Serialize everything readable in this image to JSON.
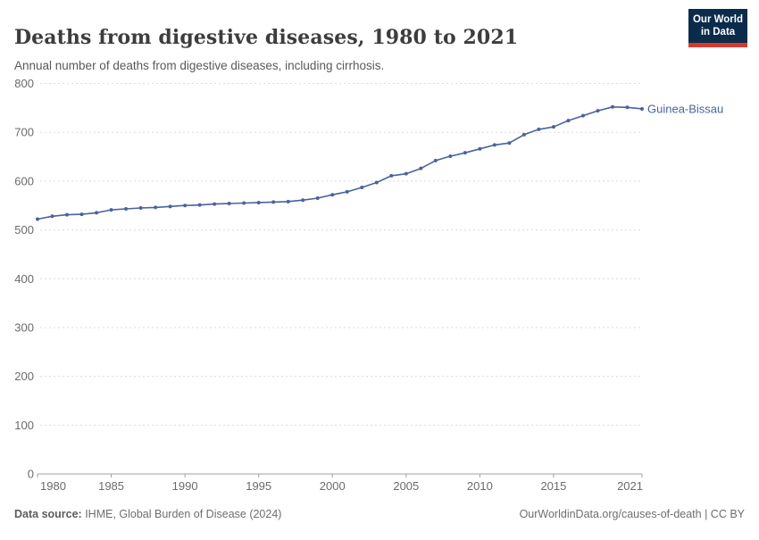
{
  "header": {
    "title": "Deaths from digestive diseases, 1980 to 2021",
    "subtitle": "Annual number of deaths from digestive diseases, including cirrhosis."
  },
  "logo": {
    "line1": "Our World",
    "line2": "in Data",
    "bg_color": "#0b2b4b",
    "accent_color": "#d7382e"
  },
  "chart_data": {
    "type": "line",
    "title": "Deaths from digestive diseases, 1980 to 2021",
    "series": [
      {
        "name": "Guinea-Bissau",
        "color": "#49639c",
        "x": [
          1980,
          1981,
          1982,
          1983,
          1984,
          1985,
          1986,
          1987,
          1988,
          1989,
          1990,
          1991,
          1992,
          1993,
          1994,
          1995,
          1996,
          1997,
          1998,
          1999,
          2000,
          2001,
          2002,
          2003,
          2004,
          2005,
          2006,
          2007,
          2008,
          2009,
          2010,
          2011,
          2012,
          2013,
          2014,
          2015,
          2016,
          2017,
          2018,
          2019,
          2020,
          2021
        ],
        "values": [
          522,
          528,
          531,
          532,
          535,
          541,
          543,
          545,
          546,
          548,
          550,
          551,
          553,
          554,
          555,
          556,
          557,
          558,
          561,
          565,
          572,
          578,
          587,
          597,
          611,
          615,
          626,
          642,
          651,
          658,
          666,
          674,
          678,
          695,
          706,
          711,
          724,
          734,
          744,
          752,
          751,
          748
        ]
      }
    ],
    "xlabel": "",
    "ylabel": "",
    "xlim": [
      1980,
      2021
    ],
    "ylim": [
      0,
      800
    ],
    "x_ticks": [
      1980,
      1985,
      1990,
      1995,
      2000,
      2005,
      2010,
      2015,
      2021
    ],
    "y_ticks": [
      0,
      100,
      200,
      300,
      400,
      500,
      600,
      700,
      800
    ],
    "grid": "dashed-horizontal",
    "legend_position": "end-of-line-label",
    "end_label": "Guinea-Bissau",
    "grid_color": "#dcdcdc",
    "axis_color": "#a0a0a0",
    "tick_text_color": "#6b6b6b"
  },
  "footer": {
    "source_label": "Data source:",
    "source_text": " IHME, Global Burden of Disease (2024)",
    "credit": "OurWorldinData.org/causes-of-death | CC BY"
  }
}
